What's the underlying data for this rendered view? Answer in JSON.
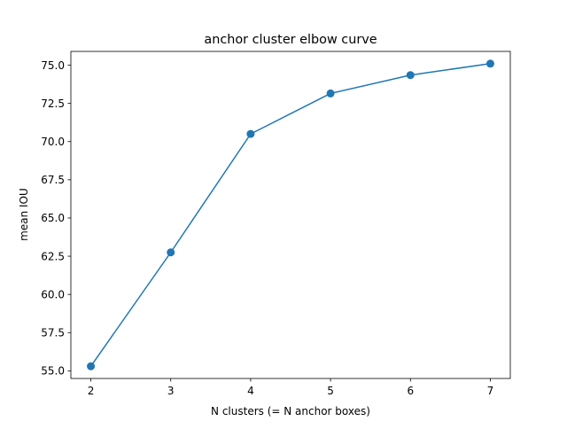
{
  "chart_data": {
    "type": "line",
    "title": "anchor cluster elbow curve",
    "xlabel": "N clusters (= N anchor boxes)",
    "ylabel": "mean IOU",
    "x": [
      2,
      3,
      4,
      5,
      6,
      7
    ],
    "series": [
      {
        "values": [
          55.3,
          62.75,
          70.5,
          73.15,
          74.35,
          75.1
        ],
        "color": "#1f77b4",
        "marker": "circle"
      }
    ],
    "xlim": [
      1.75,
      7.25
    ],
    "ylim": [
      54.5,
      75.9
    ],
    "xticks": [
      2,
      3,
      4,
      5,
      6,
      7
    ],
    "xtick_labels": [
      "2",
      "3",
      "4",
      "5",
      "6",
      "7"
    ],
    "yticks": [
      55.0,
      57.5,
      60.0,
      62.5,
      65.0,
      67.5,
      70.0,
      72.5,
      75.0
    ],
    "ytick_labels": [
      "55.0",
      "57.5",
      "60.0",
      "62.5",
      "65.0",
      "67.5",
      "70.0",
      "72.5",
      "75.0"
    ],
    "grid": false,
    "legend": false
  }
}
